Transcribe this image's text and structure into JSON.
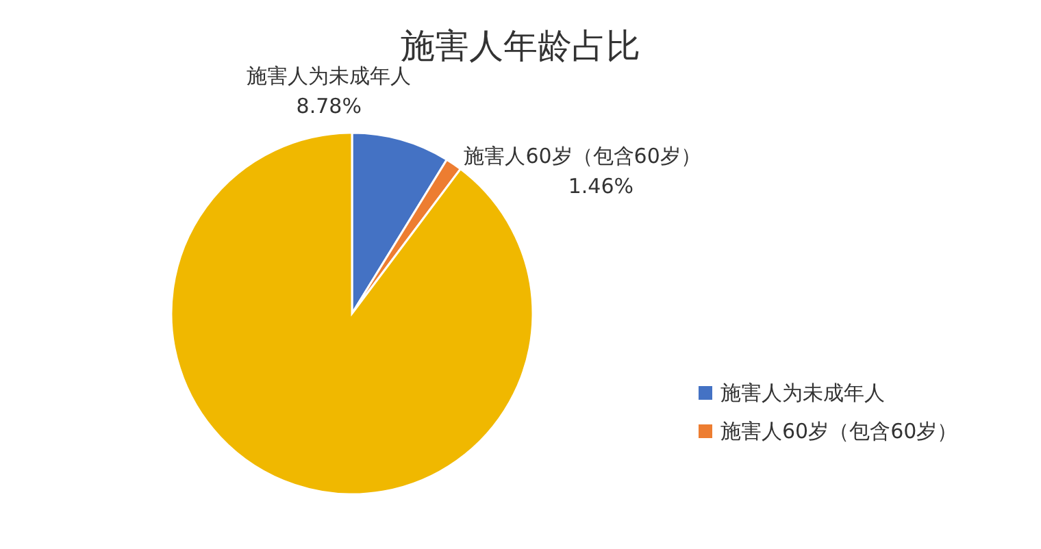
{
  "chart_data": {
    "type": "pie",
    "title": "施害人年龄占比",
    "categories": [
      "施害人为未成年人",
      "施害人60岁（包含60岁）",
      null
    ],
    "values": [
      8.78,
      1.46,
      89.76
    ],
    "colors": [
      "#4472c4",
      "#ed7d31",
      "#f0b800"
    ],
    "value_labels": [
      "8.78%",
      "1.46%",
      null
    ],
    "legend": "right"
  }
}
